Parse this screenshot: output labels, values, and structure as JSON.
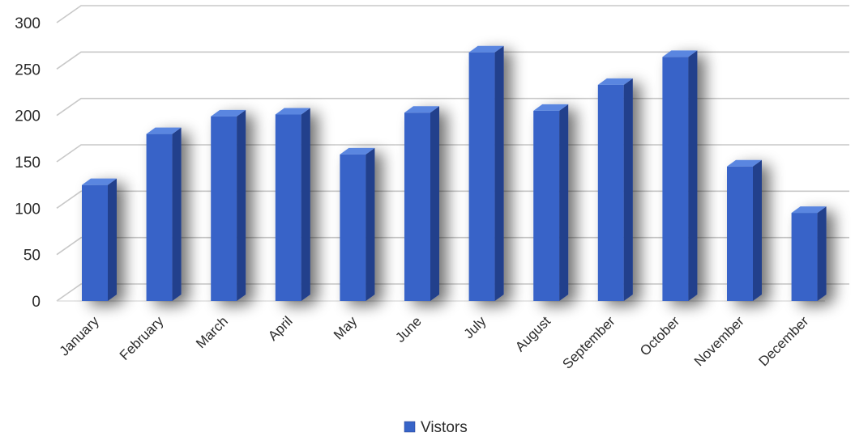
{
  "chart_data": {
    "type": "bar",
    "style": "3d-column",
    "categories": [
      "January",
      "February",
      "March",
      "April",
      "May",
      "June",
      "July",
      "August",
      "September",
      "October",
      "November",
      "December"
    ],
    "series": [
      {
        "name": "Vistors",
        "color": "#3764c8",
        "values": [
          125,
          180,
          199,
          201,
          158,
          203,
          268,
          205,
          233,
          263,
          145,
          95
        ]
      }
    ],
    "yticks": [
      0,
      50,
      100,
      150,
      200,
      250,
      300
    ],
    "ylim": [
      0,
      300
    ],
    "grid": true,
    "legend_position": "bottom",
    "title": "",
    "xlabel": "",
    "ylabel": ""
  },
  "colors": {
    "bar_front": "#3764c8",
    "bar_side": "#233f8c",
    "bar_top": "#5a86e0",
    "grid": "#c8c8c8",
    "text": "#2b2b2b"
  }
}
